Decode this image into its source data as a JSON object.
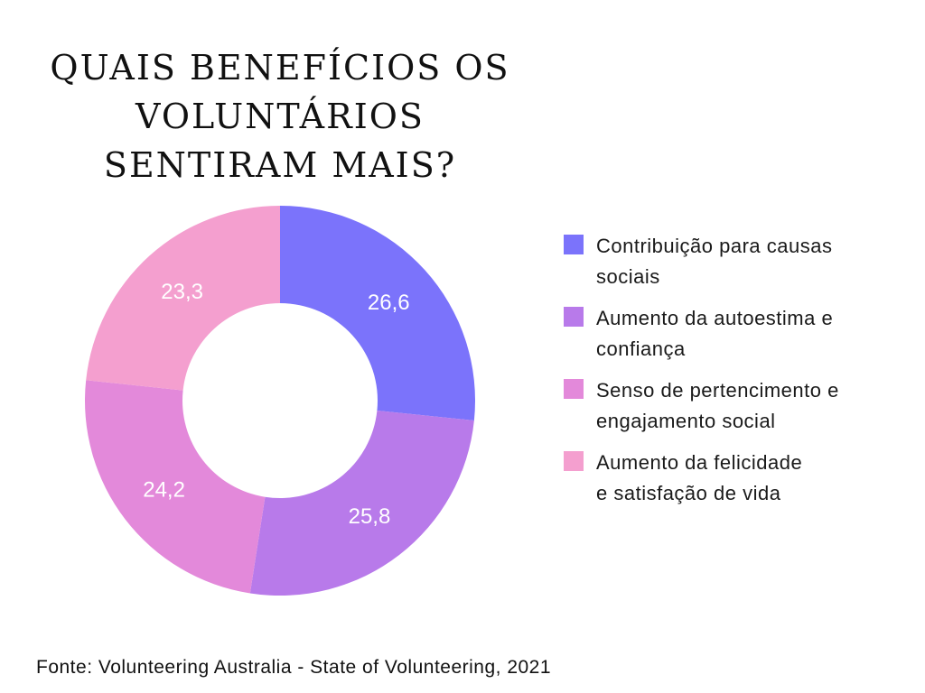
{
  "chart_data": {
    "type": "pie",
    "variant": "donut",
    "title_lines": [
      "QUAIS BENEFÍCIOS OS",
      "VOLUNTÁRIOS",
      "SENTIRAM MAIS?"
    ],
    "categories": [
      "Contribuição para causas sociais",
      "Aumento da autoestima e confiança",
      "Senso de pertencimento e engajamento social",
      "Aumento da felicidade e satisfação de vida"
    ],
    "values": [
      26.6,
      25.8,
      24.2,
      23.3
    ],
    "value_labels": [
      "26,6",
      "25,8",
      "24,2",
      "23,3"
    ],
    "colors": [
      "#7b73fb",
      "#b87aea",
      "#e389da",
      "#f49fcf"
    ],
    "legend": {
      "placement": "right",
      "items": [
        {
          "lines": [
            "Contribuição para causas",
            "sociais"
          ],
          "color": "#7b73fb"
        },
        {
          "lines": [
            "Aumento da autoestima e",
            "confiança"
          ],
          "color": "#b87aea"
        },
        {
          "lines": [
            "Senso de pertencimento e",
            "engajamento social"
          ],
          "color": "#e389da"
        },
        {
          "lines": [
            "Aumento da felicidade",
            "e satisfação de vida"
          ],
          "color": "#f49fcf"
        }
      ]
    },
    "source": "Fonte: Volunteering Australia - State of Volunteering, 2021"
  }
}
